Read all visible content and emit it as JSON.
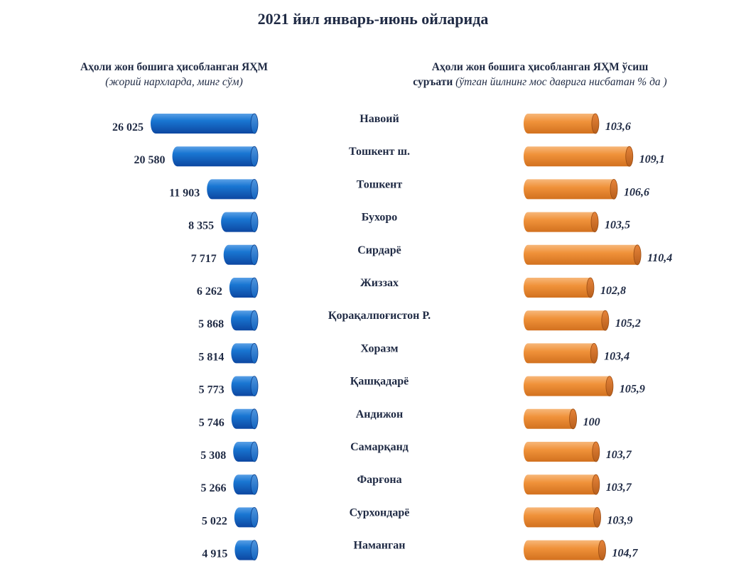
{
  "title": "2021 йил январь-июнь ойларида",
  "left_header": {
    "line1": "Аҳоли жон бошига ҳисобланган ЯҲМ",
    "line2": "(жорий нархларда, минг сўм)"
  },
  "right_header": {
    "line1": "Аҳоли жон бошига ҳисобланган ЯҲМ ўсиш",
    "line2_bold": "суръати",
    "line2_italic": " (ўтган йилнинг мос даврига нисбатан % да )"
  },
  "colors": {
    "left_bar": "#1565c0",
    "right_bar": "#f0923a",
    "text": "#1f2a44"
  },
  "chart_data": [
    {
      "type": "bar",
      "orientation": "horizontal",
      "title": "Аҳоли жон бошига ҳисобланган ЯҲМ (жорий нархларда, минг сўм)",
      "categories": [
        "Навоий",
        "Тошкент ш.",
        "Тошкент",
        "Бухоро",
        "Сирдарё",
        "Жиззах",
        "Қорақалпоғистон Р.",
        "Хоразм",
        "Қашқадарё",
        "Андижон",
        "Самарқанд",
        "Фарғона",
        "Сурхондарё",
        "Наманган"
      ],
      "values": [
        26025,
        20580,
        11903,
        8355,
        7717,
        6262,
        5868,
        5814,
        5773,
        5746,
        5308,
        5266,
        5022,
        4915
      ],
      "labels": [
        "26 025",
        "20 580",
        "11 903",
        "8 355",
        "7 717",
        "6 262",
        "5 868",
        "5 814",
        "5 773",
        "5 746",
        "5 308",
        "5 266",
        "5 022",
        "4 915"
      ],
      "direction": "right-to-left",
      "color": "#1565c0"
    },
    {
      "type": "bar",
      "orientation": "horizontal",
      "title": "Аҳоли жон бошига ҳисобланган ЯҲМ ўсиш суръати (ўтган йилнинг мос даврига нисбатан % да )",
      "categories": [
        "Навоий",
        "Тошкент ш.",
        "Тошкент",
        "Бухоро",
        "Сирдарё",
        "Жиззах",
        "Қорақалпоғистон Р.",
        "Хоразм",
        "Қашқадарё",
        "Андижон",
        "Самарқанд",
        "Фарғона",
        "Сурхондарё",
        "Наманган"
      ],
      "values": [
        103.6,
        109.1,
        106.6,
        103.5,
        110.4,
        102.8,
        105.2,
        103.4,
        105.9,
        100,
        103.7,
        103.7,
        103.9,
        104.7
      ],
      "labels": [
        "103,6",
        "109,1",
        "106,6",
        "103,5",
        "110,4",
        "102,8",
        "105,2",
        "103,4",
        "105,9",
        "100",
        "103,7",
        "103,7",
        "103,9",
        "104,7"
      ],
      "direction": "left-to-right",
      "color": "#f0923a"
    }
  ]
}
